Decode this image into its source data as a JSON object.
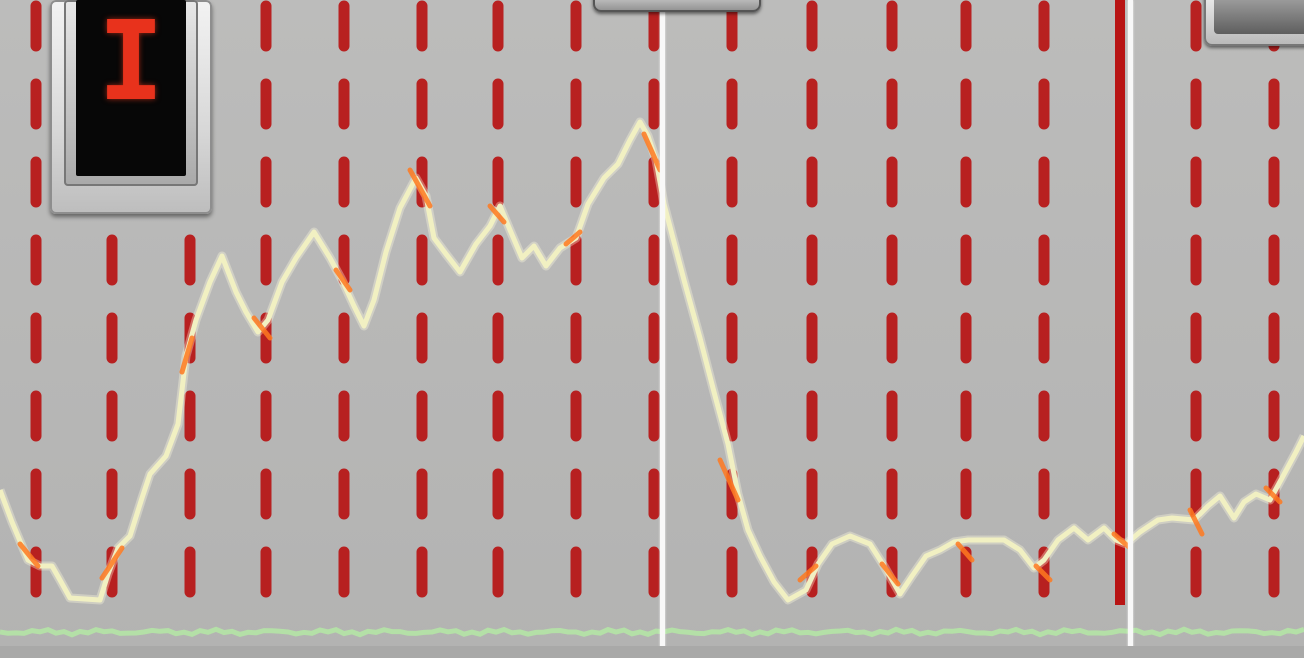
{
  "indicator": {
    "digit": "I",
    "digit_color": "#e8321c"
  },
  "colors": {
    "background": "#b8b8b7",
    "marker_lines": "#b81414",
    "trace_primary": "#f1f0c2",
    "trace_highlight": "#ff7a20",
    "trace_baseline": "#b4e7a4",
    "divider": "#f8f8f8"
  },
  "trace": {
    "name": "",
    "points": [
      [
        0,
        490
      ],
      [
        12,
        522
      ],
      [
        28,
        560
      ],
      [
        40,
        566
      ],
      [
        52,
        566
      ],
      [
        60,
        580
      ],
      [
        70,
        598
      ],
      [
        100,
        600
      ],
      [
        108,
        574
      ],
      [
        118,
        548
      ],
      [
        130,
        536
      ],
      [
        142,
        498
      ],
      [
        150,
        474
      ],
      [
        166,
        456
      ],
      [
        178,
        424
      ],
      [
        186,
        356
      ],
      [
        196,
        320
      ],
      [
        210,
        282
      ],
      [
        222,
        256
      ],
      [
        236,
        292
      ],
      [
        246,
        312
      ],
      [
        258,
        332
      ],
      [
        268,
        320
      ],
      [
        282,
        282
      ],
      [
        296,
        258
      ],
      [
        314,
        232
      ],
      [
        330,
        258
      ],
      [
        342,
        280
      ],
      [
        354,
        306
      ],
      [
        364,
        326
      ],
      [
        374,
        300
      ],
      [
        386,
        252
      ],
      [
        400,
        208
      ],
      [
        416,
        178
      ],
      [
        426,
        196
      ],
      [
        434,
        238
      ],
      [
        446,
        254
      ],
      [
        460,
        272
      ],
      [
        476,
        244
      ],
      [
        490,
        226
      ],
      [
        500,
        206
      ],
      [
        510,
        230
      ],
      [
        522,
        258
      ],
      [
        534,
        246
      ],
      [
        546,
        266
      ],
      [
        560,
        248
      ],
      [
        576,
        238
      ],
      [
        588,
        204
      ],
      [
        604,
        178
      ],
      [
        618,
        164
      ],
      [
        630,
        140
      ],
      [
        640,
        122
      ],
      [
        648,
        136
      ],
      [
        656,
        160
      ],
      [
        664,
        204
      ],
      [
        684,
        280
      ],
      [
        700,
        338
      ],
      [
        714,
        392
      ],
      [
        728,
        444
      ],
      [
        738,
        494
      ],
      [
        748,
        530
      ],
      [
        760,
        556
      ],
      [
        774,
        582
      ],
      [
        788,
        600
      ],
      [
        806,
        590
      ],
      [
        818,
        564
      ],
      [
        832,
        544
      ],
      [
        850,
        536
      ],
      [
        870,
        544
      ],
      [
        884,
        566
      ],
      [
        900,
        594
      ],
      [
        912,
        576
      ],
      [
        926,
        556
      ],
      [
        940,
        550
      ],
      [
        954,
        542
      ],
      [
        968,
        540
      ],
      [
        984,
        540
      ],
      [
        1004,
        540
      ],
      [
        1020,
        550
      ],
      [
        1034,
        568
      ],
      [
        1044,
        560
      ],
      [
        1058,
        540
      ],
      [
        1074,
        528
      ],
      [
        1088,
        540
      ],
      [
        1104,
        528
      ],
      [
        1116,
        540
      ],
      [
        1126,
        544
      ],
      [
        1140,
        532
      ],
      [
        1158,
        520
      ],
      [
        1172,
        518
      ],
      [
        1194,
        520
      ],
      [
        1208,
        506
      ],
      [
        1220,
        496
      ],
      [
        1234,
        518
      ],
      [
        1244,
        502
      ],
      [
        1256,
        494
      ],
      [
        1270,
        500
      ],
      [
        1282,
        478
      ],
      [
        1296,
        452
      ],
      [
        1304,
        436
      ]
    ],
    "highlight_segments": [
      [
        [
          20,
          544
        ],
        [
          38,
          566
        ]
      ],
      [
        [
          102,
          578
        ],
        [
          122,
          548
        ]
      ],
      [
        [
          182,
          372
        ],
        [
          192,
          338
        ]
      ],
      [
        [
          254,
          318
        ],
        [
          270,
          338
        ]
      ],
      [
        [
          336,
          270
        ],
        [
          350,
          290
        ]
      ],
      [
        [
          410,
          170
        ],
        [
          430,
          206
        ]
      ],
      [
        [
          490,
          206
        ],
        [
          504,
          222
        ]
      ],
      [
        [
          566,
          244
        ],
        [
          580,
          232
        ]
      ],
      [
        [
          644,
          134
        ],
        [
          660,
          170
        ]
      ],
      [
        [
          720,
          460
        ],
        [
          738,
          500
        ]
      ],
      [
        [
          800,
          580
        ],
        [
          816,
          566
        ]
      ],
      [
        [
          882,
          564
        ],
        [
          898,
          584
        ]
      ],
      [
        [
          958,
          544
        ],
        [
          972,
          560
        ]
      ],
      [
        [
          1036,
          566
        ],
        [
          1050,
          580
        ]
      ],
      [
        [
          1114,
          534
        ],
        [
          1130,
          548
        ]
      ],
      [
        [
          1190,
          510
        ],
        [
          1202,
          534
        ]
      ],
      [
        [
          1266,
          488
        ],
        [
          1280,
          502
        ]
      ]
    ]
  },
  "baseline_trace": {
    "y": 632
  },
  "markers": {
    "dashed_x": [
      36,
      112,
      190,
      266,
      344,
      422,
      498,
      576,
      654,
      732,
      812,
      892,
      966,
      1044,
      1196,
      1274
    ],
    "solid_x": [
      1120
    ]
  },
  "dividers_x": [
    662,
    1130
  ]
}
